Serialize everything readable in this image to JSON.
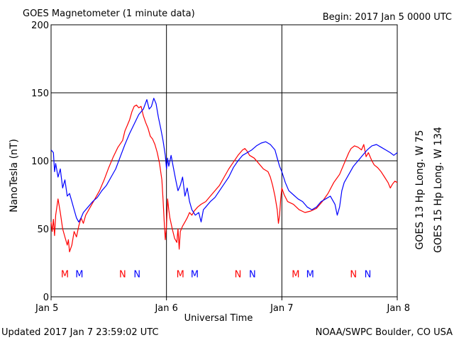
{
  "header": {
    "title": "GOES Magnetometer (1 minute data)",
    "begin": "Begin:  2017 Jan 5 0000 UTC"
  },
  "footer": {
    "updated": "Updated 2017 Jan  7 23:59:02 UTC",
    "source": "NOAA/SWPC Boulder, CO USA"
  },
  "colors": {
    "goes13": "#ff0000",
    "goes15": "#0000ff",
    "grid": "#000000"
  },
  "chart_data": {
    "type": "line",
    "title": "GOES Magnetometer (1 minute data)",
    "xlabel": "Universal Time",
    "ylabel": "NanoTesla (nT)",
    "ylim": [
      0,
      200
    ],
    "yticks": [
      0,
      50,
      100,
      150,
      200
    ],
    "xlim_days": [
      0,
      3
    ],
    "xticks": [
      {
        "day": 0,
        "label": "Jan 5"
      },
      {
        "day": 1,
        "label": "Jan 6"
      },
      {
        "day": 2,
        "label": "Jan 7"
      },
      {
        "day": 3,
        "label": "Jan 8"
      }
    ],
    "grid": true,
    "series": [
      {
        "name": "GOES 13 Hp  Long. W 75",
        "color": "#ff0000",
        "points": [
          [
            0.0,
            55
          ],
          [
            0.01,
            48
          ],
          [
            0.02,
            57
          ],
          [
            0.03,
            45
          ],
          [
            0.04,
            60
          ],
          [
            0.06,
            72
          ],
          [
            0.08,
            62
          ],
          [
            0.1,
            50
          ],
          [
            0.12,
            44
          ],
          [
            0.14,
            38
          ],
          [
            0.15,
            42
          ],
          [
            0.16,
            33
          ],
          [
            0.18,
            38
          ],
          [
            0.2,
            48
          ],
          [
            0.22,
            44
          ],
          [
            0.24,
            52
          ],
          [
            0.26,
            58
          ],
          [
            0.28,
            54
          ],
          [
            0.3,
            60
          ],
          [
            0.34,
            66
          ],
          [
            0.38,
            72
          ],
          [
            0.42,
            78
          ],
          [
            0.46,
            86
          ],
          [
            0.5,
            95
          ],
          [
            0.54,
            103
          ],
          [
            0.58,
            110
          ],
          [
            0.62,
            115
          ],
          [
            0.64,
            122
          ],
          [
            0.66,
            126
          ],
          [
            0.68,
            130
          ],
          [
            0.7,
            136
          ],
          [
            0.72,
            140
          ],
          [
            0.74,
            141
          ],
          [
            0.76,
            139
          ],
          [
            0.78,
            140
          ],
          [
            0.8,
            133
          ],
          [
            0.82,
            128
          ],
          [
            0.84,
            124
          ],
          [
            0.86,
            118
          ],
          [
            0.88,
            116
          ],
          [
            0.9,
            112
          ],
          [
            0.92,
            106
          ],
          [
            0.94,
            98
          ],
          [
            0.96,
            86
          ],
          [
            0.97,
            72
          ],
          [
            0.98,
            56
          ],
          [
            0.99,
            42
          ],
          [
            1.0,
            52
          ],
          [
            1.01,
            72
          ],
          [
            1.02,
            64
          ],
          [
            1.03,
            58
          ],
          [
            1.05,
            50
          ],
          [
            1.07,
            43
          ],
          [
            1.09,
            40
          ],
          [
            1.1,
            50
          ],
          [
            1.11,
            35
          ],
          [
            1.12,
            48
          ],
          [
            1.14,
            52
          ],
          [
            1.16,
            55
          ],
          [
            1.18,
            58
          ],
          [
            1.2,
            62
          ],
          [
            1.22,
            60
          ],
          [
            1.24,
            63
          ],
          [
            1.27,
            66
          ],
          [
            1.3,
            68
          ],
          [
            1.34,
            70
          ],
          [
            1.38,
            74
          ],
          [
            1.42,
            78
          ],
          [
            1.46,
            82
          ],
          [
            1.5,
            88
          ],
          [
            1.54,
            94
          ],
          [
            1.58,
            99
          ],
          [
            1.62,
            104
          ],
          [
            1.66,
            108
          ],
          [
            1.68,
            109
          ],
          [
            1.7,
            107
          ],
          [
            1.72,
            104
          ],
          [
            1.76,
            102
          ],
          [
            1.8,
            98
          ],
          [
            1.84,
            94
          ],
          [
            1.88,
            92
          ],
          [
            1.9,
            88
          ],
          [
            1.92,
            82
          ],
          [
            1.94,
            74
          ],
          [
            1.96,
            64
          ],
          [
            1.97,
            54
          ],
          [
            1.98,
            60
          ],
          [
            1.99,
            72
          ],
          [
            2.0,
            80
          ],
          [
            2.02,
            75
          ],
          [
            2.05,
            70
          ],
          [
            2.1,
            68
          ],
          [
            2.15,
            64
          ],
          [
            2.2,
            62
          ],
          [
            2.25,
            63
          ],
          [
            2.3,
            65
          ],
          [
            2.35,
            70
          ],
          [
            2.4,
            76
          ],
          [
            2.45,
            84
          ],
          [
            2.5,
            90
          ],
          [
            2.55,
            100
          ],
          [
            2.58,
            106
          ],
          [
            2.6,
            109
          ],
          [
            2.63,
            111
          ],
          [
            2.66,
            110
          ],
          [
            2.69,
            108
          ],
          [
            2.71,
            112
          ],
          [
            2.73,
            103
          ],
          [
            2.75,
            106
          ],
          [
            2.78,
            100
          ],
          [
            2.8,
            97
          ],
          [
            2.83,
            95
          ],
          [
            2.86,
            92
          ],
          [
            2.89,
            88
          ],
          [
            2.92,
            84
          ],
          [
            2.94,
            80
          ],
          [
            2.96,
            83
          ],
          [
            2.98,
            85
          ],
          [
            3.0,
            84
          ]
        ]
      },
      {
        "name": "GOES 15 Hp  Long. W 134",
        "color": "#0000ff",
        "points": [
          [
            0.0,
            108
          ],
          [
            0.02,
            106
          ],
          [
            0.03,
            92
          ],
          [
            0.04,
            98
          ],
          [
            0.06,
            88
          ],
          [
            0.08,
            94
          ],
          [
            0.1,
            80
          ],
          [
            0.12,
            86
          ],
          [
            0.14,
            74
          ],
          [
            0.16,
            76
          ],
          [
            0.18,
            70
          ],
          [
            0.2,
            64
          ],
          [
            0.22,
            58
          ],
          [
            0.24,
            55
          ],
          [
            0.26,
            58
          ],
          [
            0.28,
            62
          ],
          [
            0.32,
            66
          ],
          [
            0.36,
            70
          ],
          [
            0.4,
            73
          ],
          [
            0.44,
            78
          ],
          [
            0.48,
            82
          ],
          [
            0.52,
            88
          ],
          [
            0.56,
            94
          ],
          [
            0.6,
            103
          ],
          [
            0.64,
            112
          ],
          [
            0.68,
            120
          ],
          [
            0.72,
            127
          ],
          [
            0.76,
            134
          ],
          [
            0.8,
            138
          ],
          [
            0.83,
            145
          ],
          [
            0.85,
            138
          ],
          [
            0.87,
            140
          ],
          [
            0.89,
            146
          ],
          [
            0.91,
            142
          ],
          [
            0.93,
            132
          ],
          [
            0.95,
            124
          ],
          [
            0.97,
            115
          ],
          [
            0.99,
            104
          ],
          [
            1.0,
            94
          ],
          [
            1.01,
            102
          ],
          [
            1.02,
            96
          ],
          [
            1.04,
            104
          ],
          [
            1.06,
            95
          ],
          [
            1.08,
            86
          ],
          [
            1.1,
            78
          ],
          [
            1.12,
            82
          ],
          [
            1.14,
            88
          ],
          [
            1.16,
            74
          ],
          [
            1.18,
            80
          ],
          [
            1.2,
            70
          ],
          [
            1.22,
            64
          ],
          [
            1.25,
            60
          ],
          [
            1.28,
            62
          ],
          [
            1.3,
            55
          ],
          [
            1.32,
            64
          ],
          [
            1.34,
            66
          ],
          [
            1.38,
            70
          ],
          [
            1.42,
            73
          ],
          [
            1.46,
            78
          ],
          [
            1.5,
            83
          ],
          [
            1.54,
            88
          ],
          [
            1.58,
            95
          ],
          [
            1.62,
            100
          ],
          [
            1.66,
            104
          ],
          [
            1.7,
            106
          ],
          [
            1.74,
            108
          ],
          [
            1.78,
            111
          ],
          [
            1.82,
            113
          ],
          [
            1.86,
            114
          ],
          [
            1.9,
            112
          ],
          [
            1.94,
            108
          ],
          [
            1.96,
            102
          ],
          [
            1.98,
            96
          ],
          [
            2.0,
            92
          ],
          [
            2.03,
            84
          ],
          [
            2.06,
            78
          ],
          [
            2.1,
            75
          ],
          [
            2.14,
            72
          ],
          [
            2.18,
            70
          ],
          [
            2.22,
            66
          ],
          [
            2.26,
            64
          ],
          [
            2.3,
            66
          ],
          [
            2.34,
            70
          ],
          [
            2.38,
            72
          ],
          [
            2.42,
            74
          ],
          [
            2.46,
            68
          ],
          [
            2.48,
            60
          ],
          [
            2.5,
            66
          ],
          [
            2.52,
            78
          ],
          [
            2.54,
            84
          ],
          [
            2.58,
            90
          ],
          [
            2.62,
            96
          ],
          [
            2.66,
            100
          ],
          [
            2.7,
            104
          ],
          [
            2.74,
            108
          ],
          [
            2.78,
            111
          ],
          [
            2.82,
            112
          ],
          [
            2.86,
            110
          ],
          [
            2.9,
            108
          ],
          [
            2.94,
            106
          ],
          [
            2.97,
            104
          ],
          [
            3.0,
            106
          ]
        ]
      }
    ],
    "markers": [
      {
        "day": 0.12,
        "label": "M",
        "color": "#ff0000"
      },
      {
        "day": 0.245,
        "label": "M",
        "color": "#0000ff"
      },
      {
        "day": 0.62,
        "label": "N",
        "color": "#ff0000"
      },
      {
        "day": 0.745,
        "label": "N",
        "color": "#0000ff"
      },
      {
        "day": 1.12,
        "label": "M",
        "color": "#ff0000"
      },
      {
        "day": 1.245,
        "label": "M",
        "color": "#0000ff"
      },
      {
        "day": 1.62,
        "label": "N",
        "color": "#ff0000"
      },
      {
        "day": 1.745,
        "label": "N",
        "color": "#0000ff"
      },
      {
        "day": 2.12,
        "label": "M",
        "color": "#ff0000"
      },
      {
        "day": 2.245,
        "label": "M",
        "color": "#0000ff"
      },
      {
        "day": 2.62,
        "label": "N",
        "color": "#ff0000"
      },
      {
        "day": 2.745,
        "label": "N",
        "color": "#0000ff"
      }
    ],
    "marker_level_nT": 17
  }
}
